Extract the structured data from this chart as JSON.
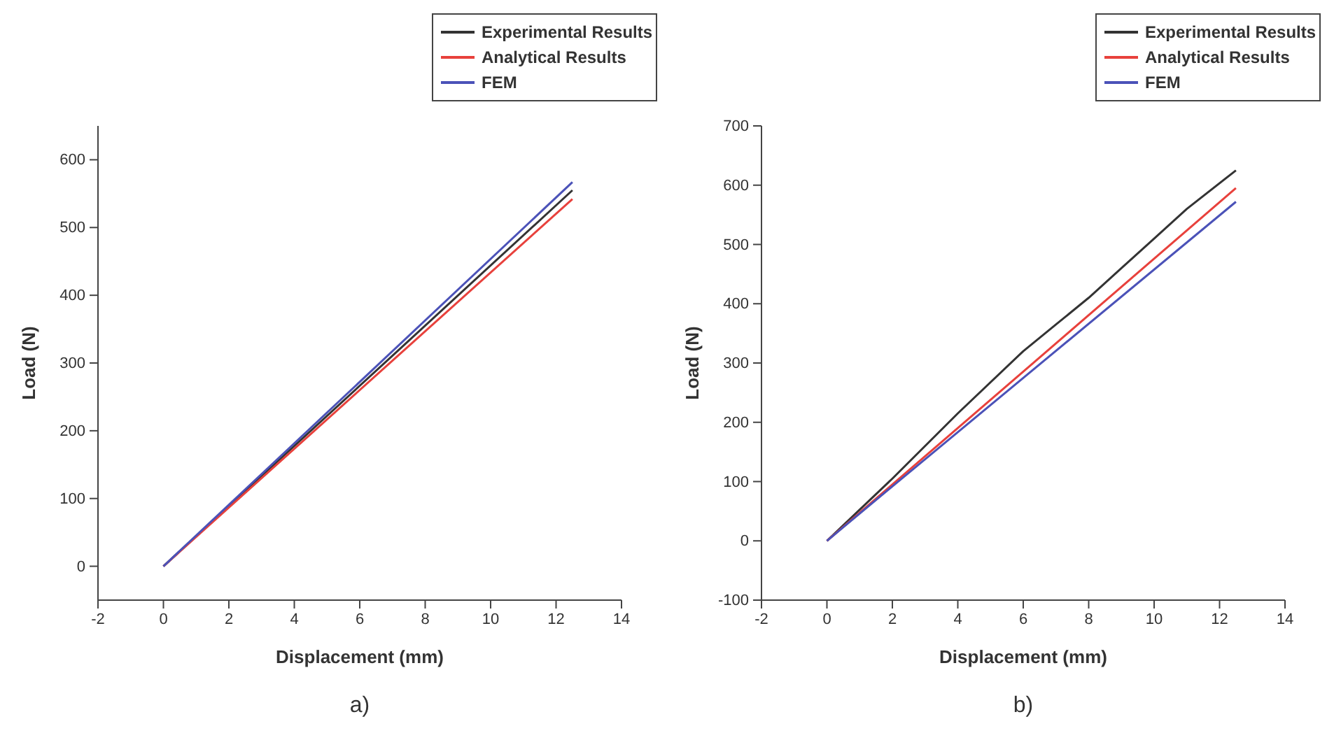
{
  "chart_data": [
    {
      "type": "line",
      "xlabel": "Displacement (mm)",
      "ylabel": "Load (N)",
      "annotations": [
        "a)"
      ],
      "xlim": [
        -2,
        14
      ],
      "xticks": [
        -2,
        0,
        2,
        4,
        6,
        8,
        10,
        12,
        14
      ],
      "ylim": [
        -50,
        650
      ],
      "yticks": [
        0,
        100,
        200,
        300,
        400,
        500,
        600
      ],
      "grid": false,
      "legend": "top right",
      "marker": "none",
      "line_style": "solid",
      "series": [
        {
          "name": "Experimental Results",
          "color": "#333333",
          "x": [
            0,
            12.5
          ],
          "values": [
            0,
            555
          ]
        },
        {
          "name": "Analytical Results",
          "color": "#e8413c",
          "x": [
            0,
            12.5
          ],
          "values": [
            0,
            542
          ]
        },
        {
          "name": "FEM",
          "color": "#4b52b8",
          "x": [
            0,
            12.5
          ],
          "values": [
            0,
            567
          ]
        }
      ]
    },
    {
      "type": "line",
      "xlabel": "Displacement (mm)",
      "ylabel": "Load (N)",
      "annotations": [
        "b)"
      ],
      "xlim": [
        -2,
        14
      ],
      "xticks": [
        -2,
        0,
        2,
        4,
        6,
        8,
        10,
        12,
        14
      ],
      "ylim": [
        -100,
        700
      ],
      "yticks": [
        -100,
        0,
        100,
        200,
        300,
        400,
        500,
        600,
        700
      ],
      "grid": false,
      "legend": "top right",
      "marker": "none",
      "line_style": "solid",
      "series": [
        {
          "name": "Experimental Results",
          "color": "#333333",
          "x": [
            0,
            2,
            4,
            6,
            7,
            8,
            9,
            10,
            11,
            12.5
          ],
          "values": [
            0,
            105,
            215,
            320,
            365,
            410,
            460,
            510,
            560,
            625
          ]
        },
        {
          "name": "Analytical Results",
          "color": "#e8413c",
          "x": [
            0,
            2,
            12.5
          ],
          "values": [
            0,
            95,
            595
          ]
        },
        {
          "name": "FEM",
          "color": "#4b52b8",
          "x": [
            0,
            2,
            12.5
          ],
          "values": [
            0,
            92,
            572
          ]
        }
      ]
    }
  ]
}
